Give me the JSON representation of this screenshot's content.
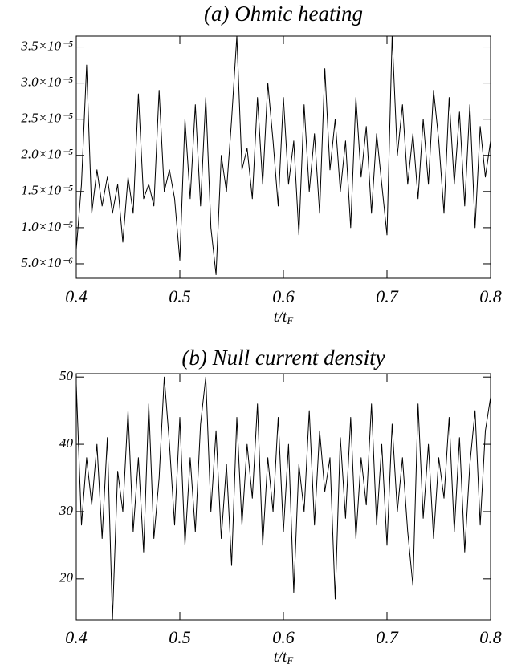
{
  "chart_data": [
    {
      "type": "line",
      "title": "(a) Ohmic heating",
      "xlabel": "t/t",
      "xlabel_sub": "F",
      "xlim": [
        0.4,
        0.8
      ],
      "xticks": [
        0.4,
        0.5,
        0.6,
        0.7,
        0.8
      ],
      "ylim": [
        3e-06,
        3.65e-05
      ],
      "yticks": [
        {
          "value": 5e-06,
          "label": "5.0×10⁻⁶"
        },
        {
          "value": 1e-05,
          "label": "1.0×10⁻⁵"
        },
        {
          "value": 1.5e-05,
          "label": "1.5×10⁻⁵"
        },
        {
          "value": 2e-05,
          "label": "2.0×10⁻⁵"
        },
        {
          "value": 2.5e-05,
          "label": "2.5×10⁻⁵"
        },
        {
          "value": 3e-05,
          "label": "3.0×10⁻⁵"
        },
        {
          "value": 3.5e-05,
          "label": "3.5×10⁻⁵"
        }
      ],
      "color": "#000000",
      "x": [
        0.4,
        0.405,
        0.41,
        0.415,
        0.42,
        0.425,
        0.43,
        0.435,
        0.44,
        0.445,
        0.45,
        0.455,
        0.46,
        0.465,
        0.47,
        0.475,
        0.48,
        0.485,
        0.49,
        0.495,
        0.5,
        0.505,
        0.51,
        0.515,
        0.52,
        0.525,
        0.53,
        0.535,
        0.54,
        0.545,
        0.55,
        0.555,
        0.56,
        0.565,
        0.57,
        0.575,
        0.58,
        0.585,
        0.59,
        0.595,
        0.6,
        0.605,
        0.61,
        0.615,
        0.62,
        0.625,
        0.63,
        0.635,
        0.64,
        0.645,
        0.65,
        0.655,
        0.66,
        0.665,
        0.67,
        0.675,
        0.68,
        0.685,
        0.69,
        0.695,
        0.7,
        0.705,
        0.71,
        0.715,
        0.72,
        0.725,
        0.73,
        0.735,
        0.74,
        0.745,
        0.75,
        0.755,
        0.76,
        0.765,
        0.77,
        0.775,
        0.78,
        0.785,
        0.79,
        0.795,
        0.8
      ],
      "values": [
        7e-06,
        1.6e-05,
        3.25e-05,
        1.2e-05,
        1.8e-05,
        1.3e-05,
        1.7e-05,
        1.2e-05,
        1.6e-05,
        8e-06,
        1.7e-05,
        1.2e-05,
        2.85e-05,
        1.4e-05,
        1.6e-05,
        1.3e-05,
        2.9e-05,
        1.5e-05,
        1.8e-05,
        1.4e-05,
        5.5e-06,
        2.5e-05,
        1.4e-05,
        2.7e-05,
        1.3e-05,
        2.8e-05,
        1e-05,
        3.5e-06,
        2e-05,
        1.5e-05,
        2.5e-05,
        3.65e-05,
        1.8e-05,
        2.1e-05,
        1.4e-05,
        2.8e-05,
        1.6e-05,
        3e-05,
        2.2e-05,
        1.3e-05,
        2.8e-05,
        1.6e-05,
        2.2e-05,
        9e-06,
        2.7e-05,
        1.5e-05,
        2.3e-05,
        1.2e-05,
        3.2e-05,
        1.8e-05,
        2.5e-05,
        1.5e-05,
        2.2e-05,
        1e-05,
        2.8e-05,
        1.7e-05,
        2.4e-05,
        1.2e-05,
        2.3e-05,
        1.6e-05,
        9e-06,
        3.65e-05,
        2e-05,
        2.7e-05,
        1.6e-05,
        2.3e-05,
        1.4e-05,
        2.5e-05,
        1.6e-05,
        2.9e-05,
        2.2e-05,
        1.2e-05,
        2.8e-05,
        1.6e-05,
        2.6e-05,
        1.3e-05,
        2.7e-05,
        1e-05,
        2.4e-05,
        1.7e-05,
        2.2e-05
      ]
    },
    {
      "type": "line",
      "title": "(b) Null current density",
      "xlabel": "t/t",
      "xlabel_sub": "F",
      "xlim": [
        0.4,
        0.8
      ],
      "xticks": [
        0.4,
        0.5,
        0.6,
        0.7,
        0.8
      ],
      "ylim": [
        13.9,
        50.5
      ],
      "yticks": [
        20,
        30,
        40,
        50
      ],
      "color": "#000000",
      "x": [
        0.4,
        0.405,
        0.41,
        0.415,
        0.42,
        0.425,
        0.43,
        0.435,
        0.44,
        0.445,
        0.45,
        0.455,
        0.46,
        0.465,
        0.47,
        0.475,
        0.48,
        0.485,
        0.49,
        0.495,
        0.5,
        0.505,
        0.51,
        0.515,
        0.52,
        0.525,
        0.53,
        0.535,
        0.54,
        0.545,
        0.55,
        0.555,
        0.56,
        0.565,
        0.57,
        0.575,
        0.58,
        0.585,
        0.59,
        0.595,
        0.6,
        0.605,
        0.61,
        0.615,
        0.62,
        0.625,
        0.63,
        0.635,
        0.64,
        0.645,
        0.65,
        0.655,
        0.66,
        0.665,
        0.67,
        0.675,
        0.68,
        0.685,
        0.69,
        0.695,
        0.7,
        0.705,
        0.71,
        0.715,
        0.72,
        0.725,
        0.73,
        0.735,
        0.74,
        0.745,
        0.75,
        0.755,
        0.76,
        0.765,
        0.77,
        0.775,
        0.78,
        0.785,
        0.79,
        0.795,
        0.8
      ],
      "values": [
        49,
        28,
        38,
        31,
        40,
        26,
        41,
        14,
        36,
        30,
        45,
        27,
        38,
        24,
        46,
        26,
        35,
        50,
        40,
        28,
        44,
        25,
        38,
        27,
        43,
        50,
        30,
        42,
        26,
        37,
        22,
        44,
        28,
        40,
        32,
        46,
        25,
        38,
        30,
        44,
        27,
        40,
        18,
        37,
        30,
        45,
        28,
        42,
        33,
        38,
        17,
        41,
        29,
        44,
        26,
        38,
        31,
        46,
        28,
        40,
        25,
        43,
        30,
        38,
        27,
        19,
        46,
        29,
        40,
        26,
        38,
        32,
        44,
        27,
        41,
        24,
        37,
        45,
        28,
        42,
        47
      ]
    }
  ]
}
